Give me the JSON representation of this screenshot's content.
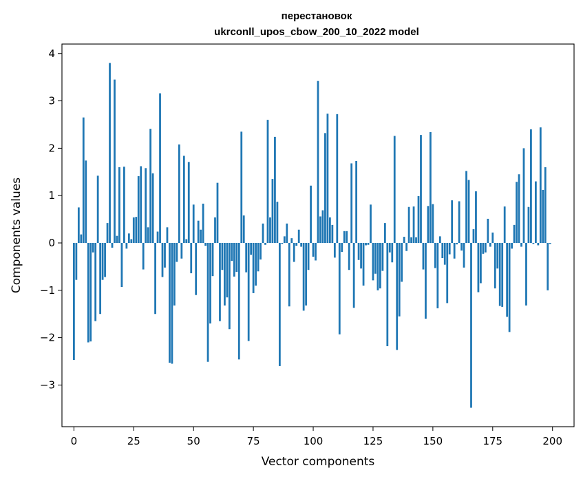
{
  "chart_data": {
    "type": "bar",
    "title_lines": [
      "перестановок",
      "ukrconll_upos_cbow_200_10_2022 model"
    ],
    "xlabel": "Vector components",
    "ylabel": "Components values",
    "xlim": [
      -5,
      209
    ],
    "ylim": [
      -3.88,
      4.2
    ],
    "xticks": [
      0,
      25,
      50,
      75,
      100,
      125,
      150,
      175,
      200
    ],
    "yticks": [
      -3,
      -2,
      -1,
      0,
      1,
      2,
      3,
      4
    ],
    "ytick_labels": [
      "−3",
      "−2",
      "−1",
      "0",
      "1",
      "2",
      "3",
      "4"
    ],
    "grid": false,
    "bar_color": "#1f77b4",
    "x": [
      0,
      1,
      2,
      3,
      4,
      5,
      6,
      7,
      8,
      9,
      10,
      11,
      12,
      13,
      14,
      15,
      16,
      17,
      18,
      19,
      20,
      21,
      22,
      23,
      24,
      25,
      26,
      27,
      28,
      29,
      30,
      31,
      32,
      33,
      34,
      35,
      36,
      37,
      38,
      39,
      40,
      41,
      42,
      43,
      44,
      45,
      46,
      47,
      48,
      49,
      50,
      51,
      52,
      53,
      54,
      55,
      56,
      57,
      58,
      59,
      60,
      61,
      62,
      63,
      64,
      65,
      66,
      67,
      68,
      69,
      70,
      71,
      72,
      73,
      74,
      75,
      76,
      77,
      78,
      79,
      80,
      81,
      82,
      83,
      84,
      85,
      86,
      87,
      88,
      89,
      90,
      91,
      92,
      93,
      94,
      95,
      96,
      97,
      98,
      99,
      100,
      101,
      102,
      103,
      104,
      105,
      106,
      107,
      108,
      109,
      110,
      111,
      112,
      113,
      114,
      115,
      116,
      117,
      118,
      119,
      120,
      121,
      122,
      123,
      124,
      125,
      126,
      127,
      128,
      129,
      130,
      131,
      132,
      133,
      134,
      135,
      136,
      137,
      138,
      139,
      140,
      141,
      142,
      143,
      144,
      145,
      146,
      147,
      148,
      149,
      150,
      151,
      152,
      153,
      154,
      155,
      156,
      157,
      158,
      159,
      160,
      161,
      162,
      163,
      164,
      165,
      166,
      167,
      168,
      169,
      170,
      171,
      172,
      173,
      174,
      175,
      176,
      177,
      178,
      179,
      180,
      181,
      182,
      183,
      184,
      185,
      186,
      187,
      188,
      189,
      190,
      191,
      192,
      193,
      194,
      195,
      196,
      197,
      198,
      199
    ],
    "values": [
      -2.47,
      -0.78,
      0.75,
      0.18,
      2.65,
      1.74,
      -2.1,
      -2.08,
      -0.2,
      -1.65,
      1.42,
      -1.5,
      -0.78,
      -0.72,
      0.42,
      3.8,
      -0.1,
      3.45,
      0.15,
      1.6,
      -0.93,
      1.61,
      -0.12,
      0.2,
      0.08,
      0.54,
      0.55,
      1.41,
      1.62,
      -0.56,
      1.58,
      0.33,
      2.41,
      1.47,
      -1.5,
      0.24,
      3.16,
      -0.72,
      -0.52,
      0.33,
      -2.53,
      -2.55,
      -1.32,
      -0.4,
      2.08,
      -0.33,
      1.84,
      0.08,
      1.71,
      -0.64,
      0.81,
      -1.1,
      0.47,
      0.28,
      0.83,
      -0.06,
      -2.51,
      -1.7,
      -0.7,
      0.54,
      1.27,
      -1.65,
      -0.57,
      -1.32,
      -1.15,
      -1.82,
      -0.38,
      -0.71,
      -0.61,
      -2.46,
      2.35,
      0.58,
      -0.62,
      -2.07,
      -0.25,
      -1.06,
      -0.9,
      -0.6,
      -0.35,
      0.41,
      -0.04,
      2.6,
      0.54,
      1.35,
      2.24,
      0.87,
      -2.6,
      -0.02,
      0.14,
      0.41,
      -1.34,
      0.1,
      -0.4,
      -0.06,
      0.28,
      -0.08,
      -1.43,
      -1.32,
      -0.57,
      1.21,
      -0.29,
      -0.37,
      3.42,
      0.56,
      0.69,
      2.32,
      2.73,
      0.54,
      0.38,
      -0.31,
      2.72,
      -1.93,
      -0.19,
      0.25,
      0.25,
      -0.57,
      1.68,
      -1.37,
      1.73,
      -0.36,
      -0.54,
      -0.9,
      -0.05,
      -0.04,
      0.81,
      -0.79,
      -0.65,
      -1.0,
      -0.96,
      -0.59,
      0.42,
      -2.18,
      -0.2,
      -0.41,
      2.26,
      -2.26,
      -1.55,
      -0.82,
      0.13,
      -0.17,
      0.76,
      0.12,
      0.77,
      0.12,
      0.99,
      2.28,
      -0.56,
      -1.6,
      0.78,
      2.34,
      0.82,
      -0.53,
      -1.38,
      0.14,
      -0.32,
      -0.46,
      -1.27,
      -0.24,
      0.9,
      -0.33,
      -0.03,
      0.88,
      -0.16,
      -0.52,
      1.52,
      1.33,
      -3.48,
      0.29,
      1.09,
      -1.04,
      -0.85,
      -0.23,
      -0.2,
      0.51,
      -0.08,
      0.22,
      -0.96,
      -0.54,
      -1.33,
      -1.35,
      0.77,
      -1.56,
      -1.88,
      -0.12,
      0.38,
      1.29,
      1.45,
      -0.08,
      2.0,
      -1.32,
      0.76,
      2.4,
      -0.02,
      1.3,
      -0.05,
      2.44,
      1.12,
      1.6,
      -1.0,
      -0.02
    ]
  }
}
